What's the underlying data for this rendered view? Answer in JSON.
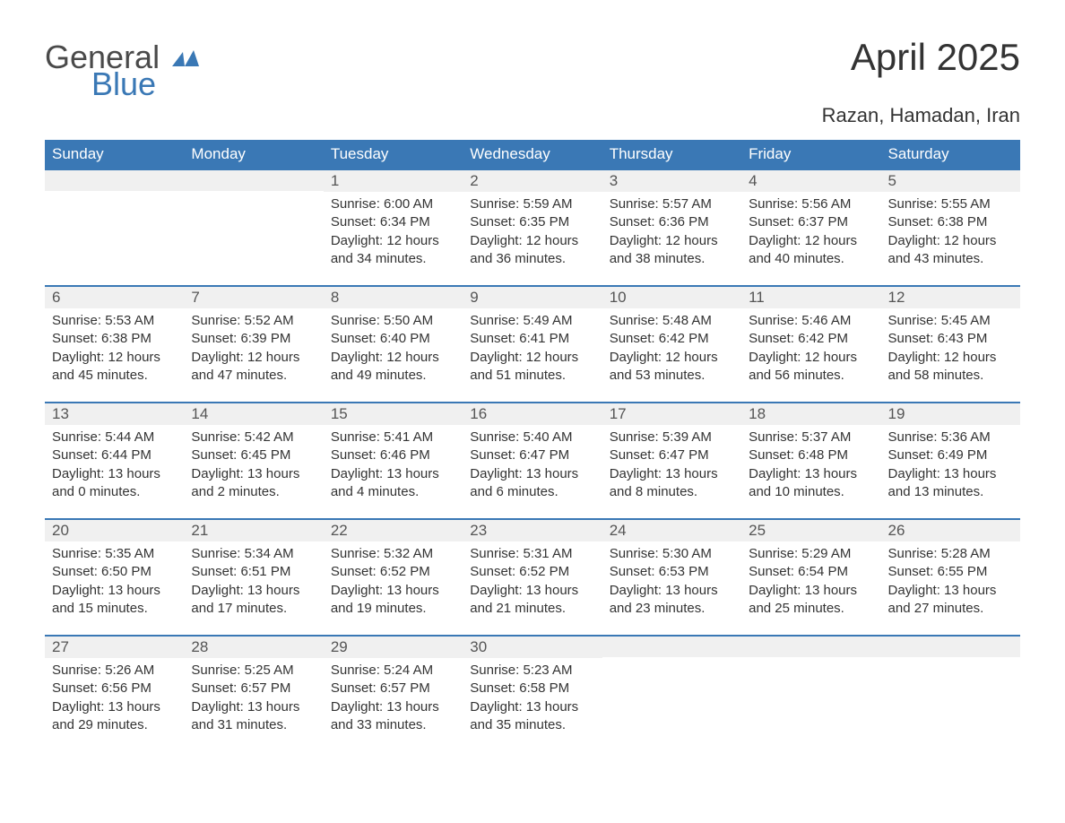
{
  "logo": {
    "line1": "General",
    "line2": "Blue",
    "color_general": "#4a4a4a",
    "color_blue": "#3a78b5",
    "shape_color": "#3a78b5"
  },
  "title": "April 2025",
  "location": "Razan, Hamadan, Iran",
  "colors": {
    "header_bg": "#3a78b5",
    "header_text": "#ffffff",
    "daynum_bg": "#f0f0f0",
    "border_top": "#3a78b5",
    "body_text": "#333333",
    "page_bg": "#ffffff"
  },
  "fonts": {
    "title_size": 42,
    "subtitle_size": 22,
    "header_size": 17,
    "daynum_size": 17,
    "body_size": 15
  },
  "weekdays": [
    "Sunday",
    "Monday",
    "Tuesday",
    "Wednesday",
    "Thursday",
    "Friday",
    "Saturday"
  ],
  "weeks": [
    [
      null,
      null,
      {
        "n": "1",
        "sunrise": "6:00 AM",
        "sunset": "6:34 PM",
        "dl": "12 hours and 34 minutes."
      },
      {
        "n": "2",
        "sunrise": "5:59 AM",
        "sunset": "6:35 PM",
        "dl": "12 hours and 36 minutes."
      },
      {
        "n": "3",
        "sunrise": "5:57 AM",
        "sunset": "6:36 PM",
        "dl": "12 hours and 38 minutes."
      },
      {
        "n": "4",
        "sunrise": "5:56 AM",
        "sunset": "6:37 PM",
        "dl": "12 hours and 40 minutes."
      },
      {
        "n": "5",
        "sunrise": "5:55 AM",
        "sunset": "6:38 PM",
        "dl": "12 hours and 43 minutes."
      }
    ],
    [
      {
        "n": "6",
        "sunrise": "5:53 AM",
        "sunset": "6:38 PM",
        "dl": "12 hours and 45 minutes."
      },
      {
        "n": "7",
        "sunrise": "5:52 AM",
        "sunset": "6:39 PM",
        "dl": "12 hours and 47 minutes."
      },
      {
        "n": "8",
        "sunrise": "5:50 AM",
        "sunset": "6:40 PM",
        "dl": "12 hours and 49 minutes."
      },
      {
        "n": "9",
        "sunrise": "5:49 AM",
        "sunset": "6:41 PM",
        "dl": "12 hours and 51 minutes."
      },
      {
        "n": "10",
        "sunrise": "5:48 AM",
        "sunset": "6:42 PM",
        "dl": "12 hours and 53 minutes."
      },
      {
        "n": "11",
        "sunrise": "5:46 AM",
        "sunset": "6:42 PM",
        "dl": "12 hours and 56 minutes."
      },
      {
        "n": "12",
        "sunrise": "5:45 AM",
        "sunset": "6:43 PM",
        "dl": "12 hours and 58 minutes."
      }
    ],
    [
      {
        "n": "13",
        "sunrise": "5:44 AM",
        "sunset": "6:44 PM",
        "dl": "13 hours and 0 minutes."
      },
      {
        "n": "14",
        "sunrise": "5:42 AM",
        "sunset": "6:45 PM",
        "dl": "13 hours and 2 minutes."
      },
      {
        "n": "15",
        "sunrise": "5:41 AM",
        "sunset": "6:46 PM",
        "dl": "13 hours and 4 minutes."
      },
      {
        "n": "16",
        "sunrise": "5:40 AM",
        "sunset": "6:47 PM",
        "dl": "13 hours and 6 minutes."
      },
      {
        "n": "17",
        "sunrise": "5:39 AM",
        "sunset": "6:47 PM",
        "dl": "13 hours and 8 minutes."
      },
      {
        "n": "18",
        "sunrise": "5:37 AM",
        "sunset": "6:48 PM",
        "dl": "13 hours and 10 minutes."
      },
      {
        "n": "19",
        "sunrise": "5:36 AM",
        "sunset": "6:49 PM",
        "dl": "13 hours and 13 minutes."
      }
    ],
    [
      {
        "n": "20",
        "sunrise": "5:35 AM",
        "sunset": "6:50 PM",
        "dl": "13 hours and 15 minutes."
      },
      {
        "n": "21",
        "sunrise": "5:34 AM",
        "sunset": "6:51 PM",
        "dl": "13 hours and 17 minutes."
      },
      {
        "n": "22",
        "sunrise": "5:32 AM",
        "sunset": "6:52 PM",
        "dl": "13 hours and 19 minutes."
      },
      {
        "n": "23",
        "sunrise": "5:31 AM",
        "sunset": "6:52 PM",
        "dl": "13 hours and 21 minutes."
      },
      {
        "n": "24",
        "sunrise": "5:30 AM",
        "sunset": "6:53 PM",
        "dl": "13 hours and 23 minutes."
      },
      {
        "n": "25",
        "sunrise": "5:29 AM",
        "sunset": "6:54 PM",
        "dl": "13 hours and 25 minutes."
      },
      {
        "n": "26",
        "sunrise": "5:28 AM",
        "sunset": "6:55 PM",
        "dl": "13 hours and 27 minutes."
      }
    ],
    [
      {
        "n": "27",
        "sunrise": "5:26 AM",
        "sunset": "6:56 PM",
        "dl": "13 hours and 29 minutes."
      },
      {
        "n": "28",
        "sunrise": "5:25 AM",
        "sunset": "6:57 PM",
        "dl": "13 hours and 31 minutes."
      },
      {
        "n": "29",
        "sunrise": "5:24 AM",
        "sunset": "6:57 PM",
        "dl": "13 hours and 33 minutes."
      },
      {
        "n": "30",
        "sunrise": "5:23 AM",
        "sunset": "6:58 PM",
        "dl": "13 hours and 35 minutes."
      },
      null,
      null,
      null
    ]
  ],
  "labels": {
    "sunrise": "Sunrise:",
    "sunset": "Sunset:",
    "daylight": "Daylight:"
  }
}
